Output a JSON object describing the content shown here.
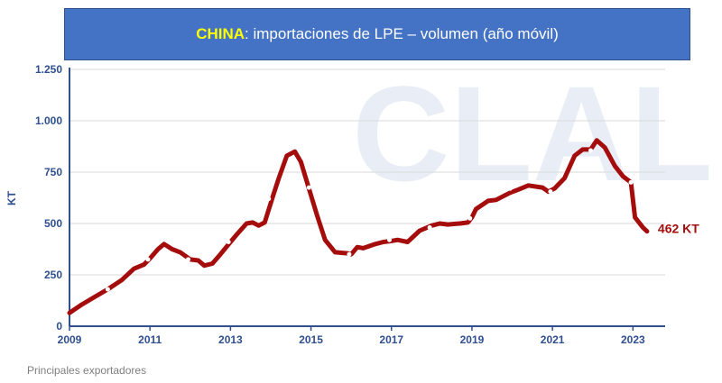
{
  "header": {
    "country": "CHINA",
    "rest": ": importaciones de LPE – volumen (año móvil)"
  },
  "watermark": "CLAL",
  "footer": "Principales exportadores",
  "colors": {
    "line": "#a50d0d",
    "axis": "#2f4f8f",
    "title_bg": "#4472c4",
    "country": "#ffff00"
  },
  "chart_data": {
    "type": "line",
    "ylabel": "KT",
    "ylim": [
      0,
      1250
    ],
    "xlim": [
      2009,
      2023.8
    ],
    "y_ticks": [
      {
        "value": 0,
        "label": "0"
      },
      {
        "value": 250,
        "label": "250"
      },
      {
        "value": 500,
        "label": "500"
      },
      {
        "value": 750,
        "label": "750"
      },
      {
        "value": 1000,
        "label": "1.000"
      },
      {
        "value": 1250,
        "label": "1.250"
      }
    ],
    "x_ticks": [
      {
        "value": 2009,
        "label": "2009"
      },
      {
        "value": 2011,
        "label": "2011"
      },
      {
        "value": 2013,
        "label": "2013"
      },
      {
        "value": 2015,
        "label": "2015"
      },
      {
        "value": 2017,
        "label": "2017"
      },
      {
        "value": 2019,
        "label": "2019"
      },
      {
        "value": 2021,
        "label": "2021"
      },
      {
        "value": 2023,
        "label": "2023"
      }
    ],
    "end_label": "462 KT",
    "series": [
      {
        "points": [
          [
            2009.0,
            65
          ],
          [
            2009.3,
            105
          ],
          [
            2009.6,
            140
          ],
          [
            2009.95,
            180
          ],
          [
            2010.3,
            225
          ],
          [
            2010.6,
            280
          ],
          [
            2010.85,
            300
          ],
          [
            2011.0,
            330
          ],
          [
            2011.2,
            375
          ],
          [
            2011.35,
            400
          ],
          [
            2011.55,
            375
          ],
          [
            2011.75,
            360
          ],
          [
            2012.0,
            325
          ],
          [
            2012.2,
            320
          ],
          [
            2012.35,
            295
          ],
          [
            2012.55,
            305
          ],
          [
            2012.75,
            350
          ],
          [
            2013.0,
            410
          ],
          [
            2013.15,
            445
          ],
          [
            2013.4,
            500
          ],
          [
            2013.55,
            505
          ],
          [
            2013.7,
            490
          ],
          [
            2013.85,
            505
          ],
          [
            2014.05,
            630
          ],
          [
            2014.2,
            720
          ],
          [
            2014.4,
            830
          ],
          [
            2014.6,
            850
          ],
          [
            2014.75,
            800
          ],
          [
            2014.95,
            670
          ],
          [
            2015.15,
            540
          ],
          [
            2015.35,
            420
          ],
          [
            2015.6,
            360
          ],
          [
            2015.9,
            355
          ],
          [
            2016.0,
            350
          ],
          [
            2016.15,
            385
          ],
          [
            2016.3,
            380
          ],
          [
            2016.6,
            400
          ],
          [
            2016.8,
            410
          ],
          [
            2017.0,
            415
          ],
          [
            2017.15,
            420
          ],
          [
            2017.4,
            410
          ],
          [
            2017.7,
            465
          ],
          [
            2018.0,
            490
          ],
          [
            2018.2,
            500
          ],
          [
            2018.4,
            495
          ],
          [
            2018.7,
            500
          ],
          [
            2018.9,
            505
          ],
          [
            2019.0,
            530
          ],
          [
            2019.1,
            570
          ],
          [
            2019.4,
            610
          ],
          [
            2019.6,
            615
          ],
          [
            2019.95,
            650
          ],
          [
            2020.15,
            665
          ],
          [
            2020.4,
            685
          ],
          [
            2020.75,
            675
          ],
          [
            2020.9,
            655
          ],
          [
            2021.05,
            670
          ],
          [
            2021.3,
            720
          ],
          [
            2021.55,
            830
          ],
          [
            2021.75,
            860
          ],
          [
            2021.95,
            860
          ],
          [
            2022.1,
            905
          ],
          [
            2022.3,
            870
          ],
          [
            2022.55,
            780
          ],
          [
            2022.75,
            730
          ],
          [
            2022.95,
            700
          ],
          [
            2023.05,
            530
          ],
          [
            2023.25,
            480
          ],
          [
            2023.35,
            462
          ]
        ],
        "markers": [
          [
            2009.95,
            180
          ],
          [
            2010.95,
            325
          ],
          [
            2011.95,
            325
          ],
          [
            2012.95,
            410
          ],
          [
            2013.95,
            620
          ],
          [
            2014.95,
            675
          ],
          [
            2015.95,
            350
          ],
          [
            2016.95,
            420
          ],
          [
            2017.95,
            480
          ],
          [
            2018.95,
            525
          ],
          [
            2019.95,
            670
          ],
          [
            2020.95,
            655
          ],
          [
            2021.95,
            855
          ],
          [
            2022.95,
            700
          ]
        ]
      }
    ]
  }
}
